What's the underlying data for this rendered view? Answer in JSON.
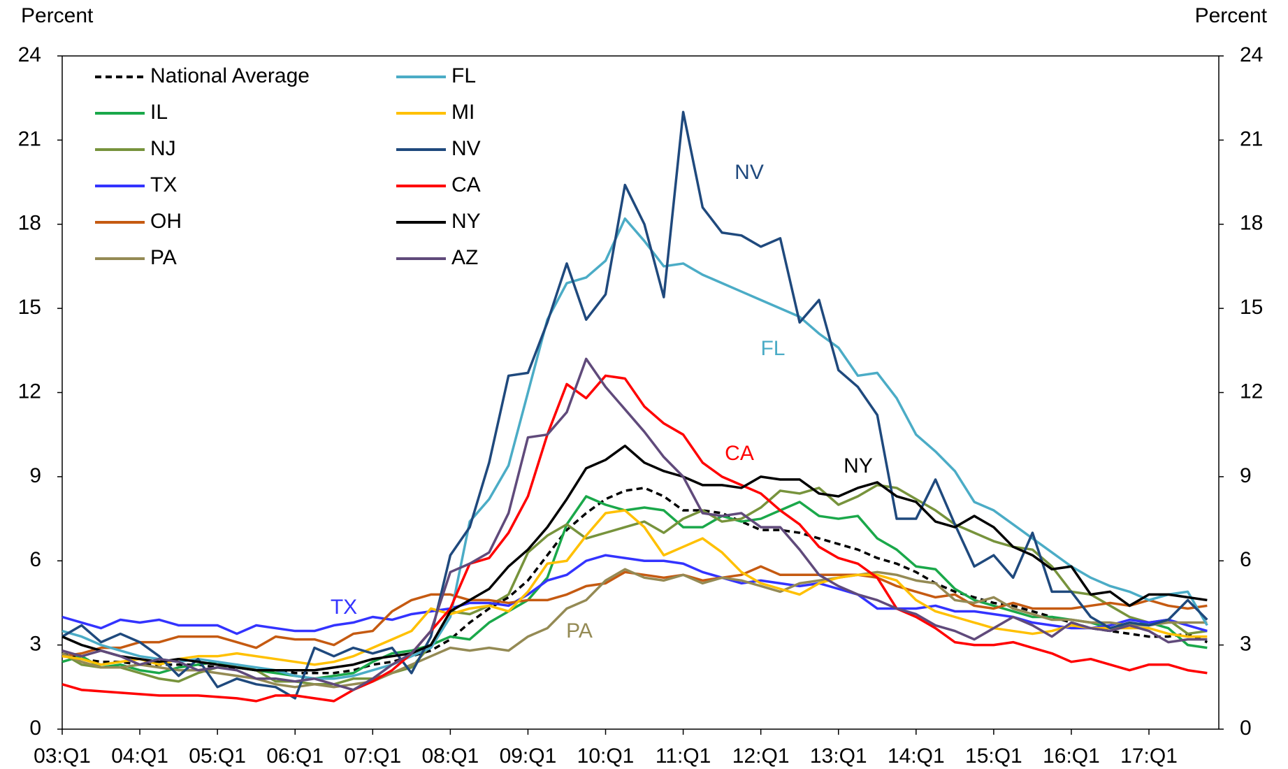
{
  "chart_data": {
    "type": "line",
    "ylabel": "Percent",
    "y2label": "Percent",
    "categories": [
      "03:Q1",
      null,
      null,
      null,
      "04:Q1",
      null,
      null,
      null,
      "05:Q1",
      null,
      null,
      null,
      "06:Q1",
      null,
      null,
      null,
      "07:Q1",
      null,
      null,
      null,
      "08:Q1",
      null,
      null,
      null,
      "09:Q1",
      null,
      null,
      null,
      "10:Q1",
      null,
      null,
      null,
      "11:Q1",
      null,
      null,
      null,
      "12:Q1",
      null,
      null,
      null,
      "13:Q1",
      null,
      null,
      null,
      "14:Q1",
      null,
      null,
      null,
      "15:Q1",
      null,
      null,
      null,
      "16:Q1",
      null,
      null,
      null,
      "17:Q1",
      null,
      null,
      null
    ],
    "ylim": [
      0,
      24
    ],
    "yticks": [
      0,
      3,
      6,
      9,
      12,
      15,
      18,
      21,
      24
    ],
    "y2lim": [
      0,
      24
    ],
    "y2ticks": [
      0,
      3,
      6,
      9,
      12,
      15,
      18,
      21,
      24
    ],
    "grid": false,
    "legend": "upper left",
    "series": [
      {
        "name": "National Average",
        "color": "#000000",
        "dash": true,
        "values": [
          2.7,
          2.5,
          2.4,
          2.4,
          2.3,
          2.3,
          2.3,
          2.3,
          2.2,
          2.2,
          2.1,
          2.1,
          2.0,
          2.0,
          2.0,
          2.1,
          2.3,
          2.4,
          2.6,
          2.8,
          3.2,
          3.8,
          4.3,
          4.7,
          5.3,
          6.2,
          7.1,
          7.7,
          8.2,
          8.5,
          8.6,
          8.3,
          7.8,
          7.8,
          7.7,
          7.4,
          7.1,
          7.1,
          7.0,
          6.8,
          6.6,
          6.4,
          6.1,
          5.9,
          5.6,
          5.2,
          4.9,
          4.7,
          4.5,
          4.4,
          4.2,
          4.0,
          3.8,
          3.6,
          3.5,
          3.4,
          3.3,
          3.3,
          3.4,
          3.1
        ]
      },
      {
        "name": "IL",
        "color": "#1aa84a",
        "values": [
          2.4,
          2.6,
          2.2,
          2.3,
          2.1,
          2.0,
          2.2,
          2.3,
          2.4,
          2.2,
          2.1,
          2.0,
          1.9,
          1.8,
          1.9,
          2.0,
          2.4,
          2.7,
          2.8,
          3.0,
          3.3,
          3.2,
          3.8,
          4.2,
          4.6,
          5.4,
          7.3,
          8.3,
          8.0,
          7.8,
          7.9,
          7.8,
          7.2,
          7.2,
          7.6,
          7.4,
          7.5,
          7.8,
          8.1,
          7.6,
          7.5,
          7.6,
          6.8,
          6.4,
          5.8,
          5.7,
          5.0,
          4.6,
          4.4,
          4.2,
          4.0,
          4.0,
          3.9,
          3.8,
          3.6,
          3.7,
          3.8,
          3.6,
          3.0,
          2.9
        ]
      },
      {
        "name": "NJ",
        "color": "#77933c",
        "values": [
          2.7,
          2.3,
          2.2,
          2.2,
          2.0,
          1.8,
          1.7,
          2.0,
          2.2,
          2.3,
          2.1,
          1.7,
          1.7,
          1.6,
          1.6,
          1.8,
          1.8,
          2.0,
          2.2,
          3.0,
          4.2,
          4.1,
          4.4,
          4.8,
          6.3,
          6.9,
          7.3,
          6.8,
          7.0,
          7.2,
          7.4,
          7.0,
          7.5,
          7.8,
          7.4,
          7.5,
          7.9,
          8.5,
          8.4,
          8.6,
          8.0,
          8.3,
          8.7,
          8.6,
          8.2,
          7.8,
          7.3,
          7.0,
          6.7,
          6.5,
          6.4,
          5.8,
          4.9,
          4.8,
          4.4,
          4.0,
          3.8,
          3.9,
          3.4,
          3.5
        ]
      },
      {
        "name": "TX",
        "color": "#3333ff",
        "values": [
          4.0,
          3.8,
          3.6,
          3.9,
          3.8,
          3.9,
          3.7,
          3.7,
          3.7,
          3.4,
          3.7,
          3.6,
          3.5,
          3.5,
          3.7,
          3.8,
          4.0,
          3.9,
          4.1,
          4.2,
          4.3,
          4.5,
          4.5,
          4.4,
          4.8,
          5.3,
          5.5,
          6.0,
          6.2,
          6.1,
          6.0,
          6.0,
          5.9,
          5.6,
          5.4,
          5.2,
          5.3,
          5.2,
          5.1,
          5.2,
          5.0,
          4.8,
          4.3,
          4.3,
          4.3,
          4.4,
          4.2,
          4.2,
          4.1,
          4.0,
          3.8,
          3.7,
          3.6,
          3.6,
          3.7,
          3.9,
          3.8,
          3.9,
          3.7,
          3.5
        ]
      },
      {
        "name": "OH",
        "color": "#c55a11",
        "values": [
          2.6,
          2.7,
          2.9,
          2.9,
          3.1,
          3.1,
          3.3,
          3.3,
          3.3,
          3.1,
          2.9,
          3.3,
          3.2,
          3.2,
          3.0,
          3.4,
          3.5,
          4.2,
          4.6,
          4.8,
          4.8,
          4.6,
          4.6,
          4.5,
          4.6,
          4.6,
          4.8,
          5.1,
          5.2,
          5.6,
          5.5,
          5.4,
          5.5,
          5.3,
          5.4,
          5.5,
          5.8,
          5.5,
          5.5,
          5.5,
          5.5,
          5.5,
          5.4,
          5.1,
          4.9,
          4.7,
          4.8,
          4.4,
          4.3,
          4.5,
          4.3,
          4.3,
          4.3,
          4.4,
          4.5,
          4.4,
          4.6,
          4.4,
          4.3,
          4.4
        ]
      },
      {
        "name": "PA",
        "color": "#948a54",
        "values": [
          2.7,
          2.4,
          2.2,
          2.2,
          2.3,
          2.2,
          2.1,
          2.1,
          2.0,
          1.9,
          1.8,
          1.6,
          1.5,
          1.6,
          1.5,
          1.6,
          1.7,
          2.0,
          2.3,
          2.6,
          2.9,
          2.8,
          2.9,
          2.8,
          3.3,
          3.6,
          4.3,
          4.6,
          5.3,
          5.7,
          5.4,
          5.3,
          5.5,
          5.2,
          5.4,
          5.3,
          5.1,
          4.9,
          5.2,
          5.3,
          5.4,
          5.5,
          5.6,
          5.5,
          5.3,
          5.2,
          4.6,
          4.5,
          4.7,
          4.3,
          4.1,
          3.9,
          3.9,
          3.8,
          3.8,
          3.7,
          3.7,
          3.8,
          3.8,
          3.8
        ]
      },
      {
        "name": "FL",
        "color": "#4bacc6",
        "values": [
          3.5,
          3.3,
          3.0,
          2.8,
          2.6,
          2.5,
          2.4,
          2.5,
          2.4,
          2.3,
          2.2,
          2.1,
          1.9,
          1.8,
          1.8,
          1.9,
          2.1,
          2.3,
          2.6,
          2.9,
          4.0,
          7.4,
          8.2,
          9.4,
          12.0,
          14.6,
          15.9,
          16.1,
          16.7,
          18.2,
          17.4,
          16.5,
          16.6,
          16.2,
          15.9,
          15.6,
          15.3,
          15.0,
          14.7,
          14.1,
          13.6,
          12.6,
          12.7,
          11.8,
          10.5,
          9.9,
          9.2,
          8.1,
          7.8,
          7.3,
          6.8,
          6.3,
          5.8,
          5.4,
          5.1,
          4.9,
          4.6,
          4.8,
          4.9,
          3.7
        ]
      },
      {
        "name": "MI",
        "color": "#ffc000",
        "values": [
          2.6,
          2.5,
          2.3,
          2.4,
          2.5,
          2.3,
          2.5,
          2.6,
          2.6,
          2.7,
          2.6,
          2.5,
          2.4,
          2.3,
          2.4,
          2.6,
          2.9,
          3.2,
          3.5,
          4.3,
          4.1,
          4.3,
          4.4,
          4.2,
          4.9,
          5.9,
          6.0,
          6.9,
          7.7,
          7.8,
          7.2,
          6.2,
          6.5,
          6.8,
          6.3,
          5.6,
          5.2,
          5.0,
          4.8,
          5.2,
          5.4,
          5.5,
          5.5,
          5.3,
          4.6,
          4.2,
          4.0,
          3.8,
          3.6,
          3.5,
          3.4,
          3.5,
          3.7,
          3.6,
          3.6,
          3.6,
          3.6,
          3.4,
          3.3,
          3.3
        ]
      },
      {
        "name": "NV",
        "color": "#1f497d",
        "values": [
          3.3,
          3.7,
          3.1,
          3.4,
          3.1,
          2.6,
          1.9,
          2.5,
          1.5,
          1.8,
          1.6,
          1.5,
          1.1,
          2.9,
          2.6,
          2.9,
          2.7,
          2.9,
          2.0,
          3.3,
          6.2,
          7.2,
          9.5,
          12.6,
          12.7,
          14.5,
          16.6,
          14.6,
          15.5,
          19.4,
          18.0,
          15.4,
          22.0,
          18.6,
          17.7,
          17.6,
          17.2,
          17.5,
          14.5,
          15.3,
          12.8,
          12.2,
          11.2,
          7.5,
          7.5,
          8.9,
          7.3,
          5.8,
          6.2,
          5.4,
          7.0,
          4.9,
          4.9,
          4.0,
          3.6,
          3.8,
          3.7,
          3.9,
          4.6,
          3.9
        ]
      },
      {
        "name": "CA",
        "color": "#ff0000",
        "values": [
          1.6,
          1.4,
          1.35,
          1.3,
          1.25,
          1.2,
          1.2,
          1.2,
          1.15,
          1.1,
          1.0,
          1.2,
          1.2,
          1.1,
          1.0,
          1.4,
          1.7,
          2.1,
          2.7,
          3.5,
          4.3,
          5.9,
          6.1,
          7.0,
          8.3,
          10.5,
          12.3,
          11.8,
          12.6,
          12.5,
          11.5,
          10.9,
          10.5,
          9.5,
          9.0,
          8.7,
          8.4,
          7.8,
          7.3,
          6.5,
          6.1,
          5.9,
          5.4,
          4.3,
          4.0,
          3.6,
          3.1,
          3.0,
          3.0,
          3.1,
          2.9,
          2.7,
          2.4,
          2.5,
          2.3,
          2.1,
          2.3,
          2.3,
          2.1,
          2.0
        ]
      },
      {
        "name": "NY",
        "color": "#000000",
        "values": [
          3.3,
          3.0,
          2.8,
          2.6,
          2.5,
          2.4,
          2.5,
          2.4,
          2.3,
          2.2,
          2.1,
          2.1,
          2.1,
          2.1,
          2.2,
          2.3,
          2.5,
          2.6,
          2.7,
          3.0,
          4.2,
          4.6,
          5.0,
          5.8,
          6.4,
          7.2,
          8.2,
          9.3,
          9.6,
          10.1,
          9.5,
          9.2,
          9.0,
          8.7,
          8.7,
          8.6,
          9.0,
          8.9,
          8.9,
          8.4,
          8.3,
          8.6,
          8.8,
          8.3,
          8.1,
          7.4,
          7.2,
          7.6,
          7.2,
          6.5,
          6.2,
          5.7,
          5.8,
          4.8,
          4.9,
          4.4,
          4.8,
          4.8,
          4.7,
          4.6
        ]
      },
      {
        "name": "AZ",
        "color": "#604a7b",
        "values": [
          2.8,
          2.6,
          2.8,
          2.6,
          2.3,
          2.5,
          2.4,
          2.1,
          2.2,
          2.1,
          1.8,
          1.8,
          1.7,
          1.8,
          1.6,
          1.4,
          1.8,
          2.3,
          2.7,
          3.5,
          5.6,
          5.9,
          6.3,
          7.7,
          10.4,
          10.5,
          11.3,
          13.2,
          12.2,
          11.4,
          10.6,
          9.7,
          9.0,
          7.7,
          7.6,
          7.7,
          7.2,
          7.2,
          6.4,
          5.5,
          5.1,
          4.8,
          4.6,
          4.3,
          4.1,
          3.7,
          3.5,
          3.2,
          3.6,
          4.0,
          3.7,
          3.3,
          3.8,
          3.6,
          3.5,
          3.7,
          3.5,
          3.1,
          3.2,
          3.2
        ]
      }
    ],
    "annotations": [
      {
        "text": "NV",
        "color": "#1f497d"
      },
      {
        "text": "FL",
        "color": "#4bacc6"
      },
      {
        "text": "CA",
        "color": "#ff0000"
      },
      {
        "text": "NY",
        "color": "#000000"
      },
      {
        "text": "TX",
        "color": "#3333ff"
      },
      {
        "text": "PA",
        "color": "#948a54"
      }
    ]
  }
}
